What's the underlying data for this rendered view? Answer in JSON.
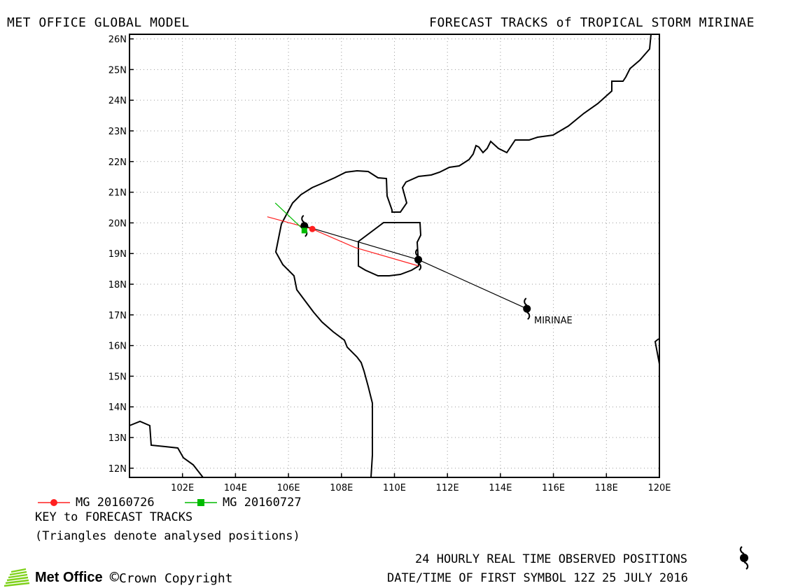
{
  "header": {
    "left_title": "MET OFFICE GLOBAL MODEL",
    "right_title": "FORECAST TRACKS of TROPICAL STORM MIRINAE"
  },
  "chart_data": {
    "type": "map",
    "lon_range": [
      100,
      120
    ],
    "lat_range": [
      11.7,
      26.15
    ],
    "x_ticks": [
      "102E",
      "104E",
      "106E",
      "108E",
      "110E",
      "112E",
      "114E",
      "116E",
      "118E",
      "120E"
    ],
    "x_tick_values": [
      102,
      104,
      106,
      108,
      110,
      112,
      114,
      116,
      118,
      120
    ],
    "y_ticks": [
      "12N",
      "13N",
      "14N",
      "15N",
      "16N",
      "17N",
      "18N",
      "19N",
      "20N",
      "21N",
      "22N",
      "23N",
      "24N",
      "25N",
      "26N"
    ],
    "y_tick_values": [
      12,
      13,
      14,
      15,
      16,
      17,
      18,
      19,
      20,
      21,
      22,
      23,
      24,
      25,
      26
    ],
    "grid": "dotted",
    "storm_label": "MIRINAE",
    "observed_track": {
      "color": "#000000",
      "points": [
        [
          115.0,
          17.2
        ],
        [
          110.9,
          18.8
        ],
        [
          106.6,
          19.9
        ]
      ]
    },
    "forecast_tracks": [
      {
        "name": "MG 20160726",
        "color": "#ff2020",
        "marker": "circle",
        "points": [
          [
            110.9,
            18.6
          ],
          [
            108.5,
            19.2
          ],
          [
            106.9,
            19.8
          ],
          [
            105.2,
            20.2
          ]
        ]
      },
      {
        "name": "MG 20160727",
        "color": "#00bb00",
        "marker": "square",
        "points": [
          [
            106.6,
            19.75
          ],
          [
            105.5,
            20.65
          ]
        ]
      }
    ]
  },
  "legend": {
    "items": [
      {
        "label": "MG 20160726",
        "color": "#ff2020",
        "marker": "circle"
      },
      {
        "label": "MG 20160727",
        "color": "#00bb00",
        "marker": "square"
      }
    ],
    "key_title": "KEY to FORECAST TRACKS",
    "key_note": "(Triangles denote analysed positions)"
  },
  "footer": {
    "observed_note": "24 HOURLY REAL TIME OBSERVED POSITIONS",
    "first_symbol": "DATE/TIME OF FIRST SYMBOL 12Z 25 JULY 2016",
    "logo_text": "Met Office",
    "copyright": "Crown Copyright",
    "copyright_symbol": "©",
    "logo_color": "#7fd11b",
    "storm_icon": "tropical-storm-symbol-icon"
  }
}
